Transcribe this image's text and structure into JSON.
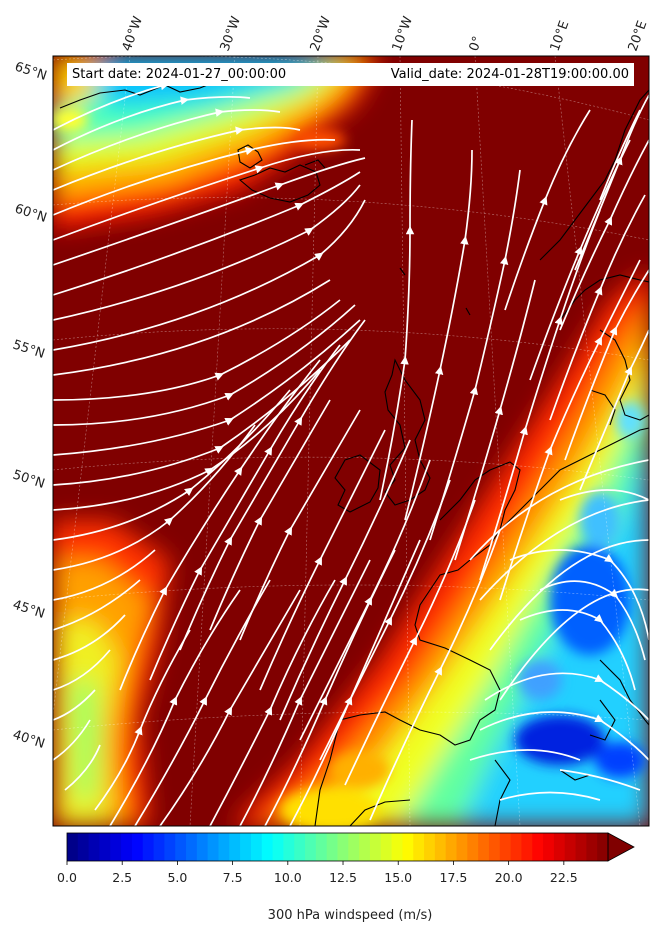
{
  "header": {
    "start_date": "Start date: 2024-01-27_00:00:00",
    "valid_date": "Valid_date: 2024-01-28T19:00:00.00"
  },
  "map": {
    "projection": "lambert-conformal",
    "longitude_labels": [
      "40°W",
      "30°W",
      "20°W",
      "10°W",
      "0°",
      "10°E",
      "20°E"
    ],
    "latitude_labels": [
      "65°N",
      "60°N",
      "55°N",
      "50°N",
      "45°N",
      "40°N"
    ],
    "field": "300 hPa windspeed",
    "overlay": "streamlines",
    "streamline_color": "#ffffff",
    "coastline_color": "#000000"
  },
  "colorbar": {
    "title": "300 hPa windspeed (m/s)",
    "colormap": "jet",
    "min": 0,
    "max": 25,
    "extend": "max",
    "tick_labels": [
      "0.0",
      "2.5",
      "5.0",
      "7.5",
      "10.0",
      "12.5",
      "15.0",
      "17.5",
      "20.0",
      "22.5"
    ]
  }
}
